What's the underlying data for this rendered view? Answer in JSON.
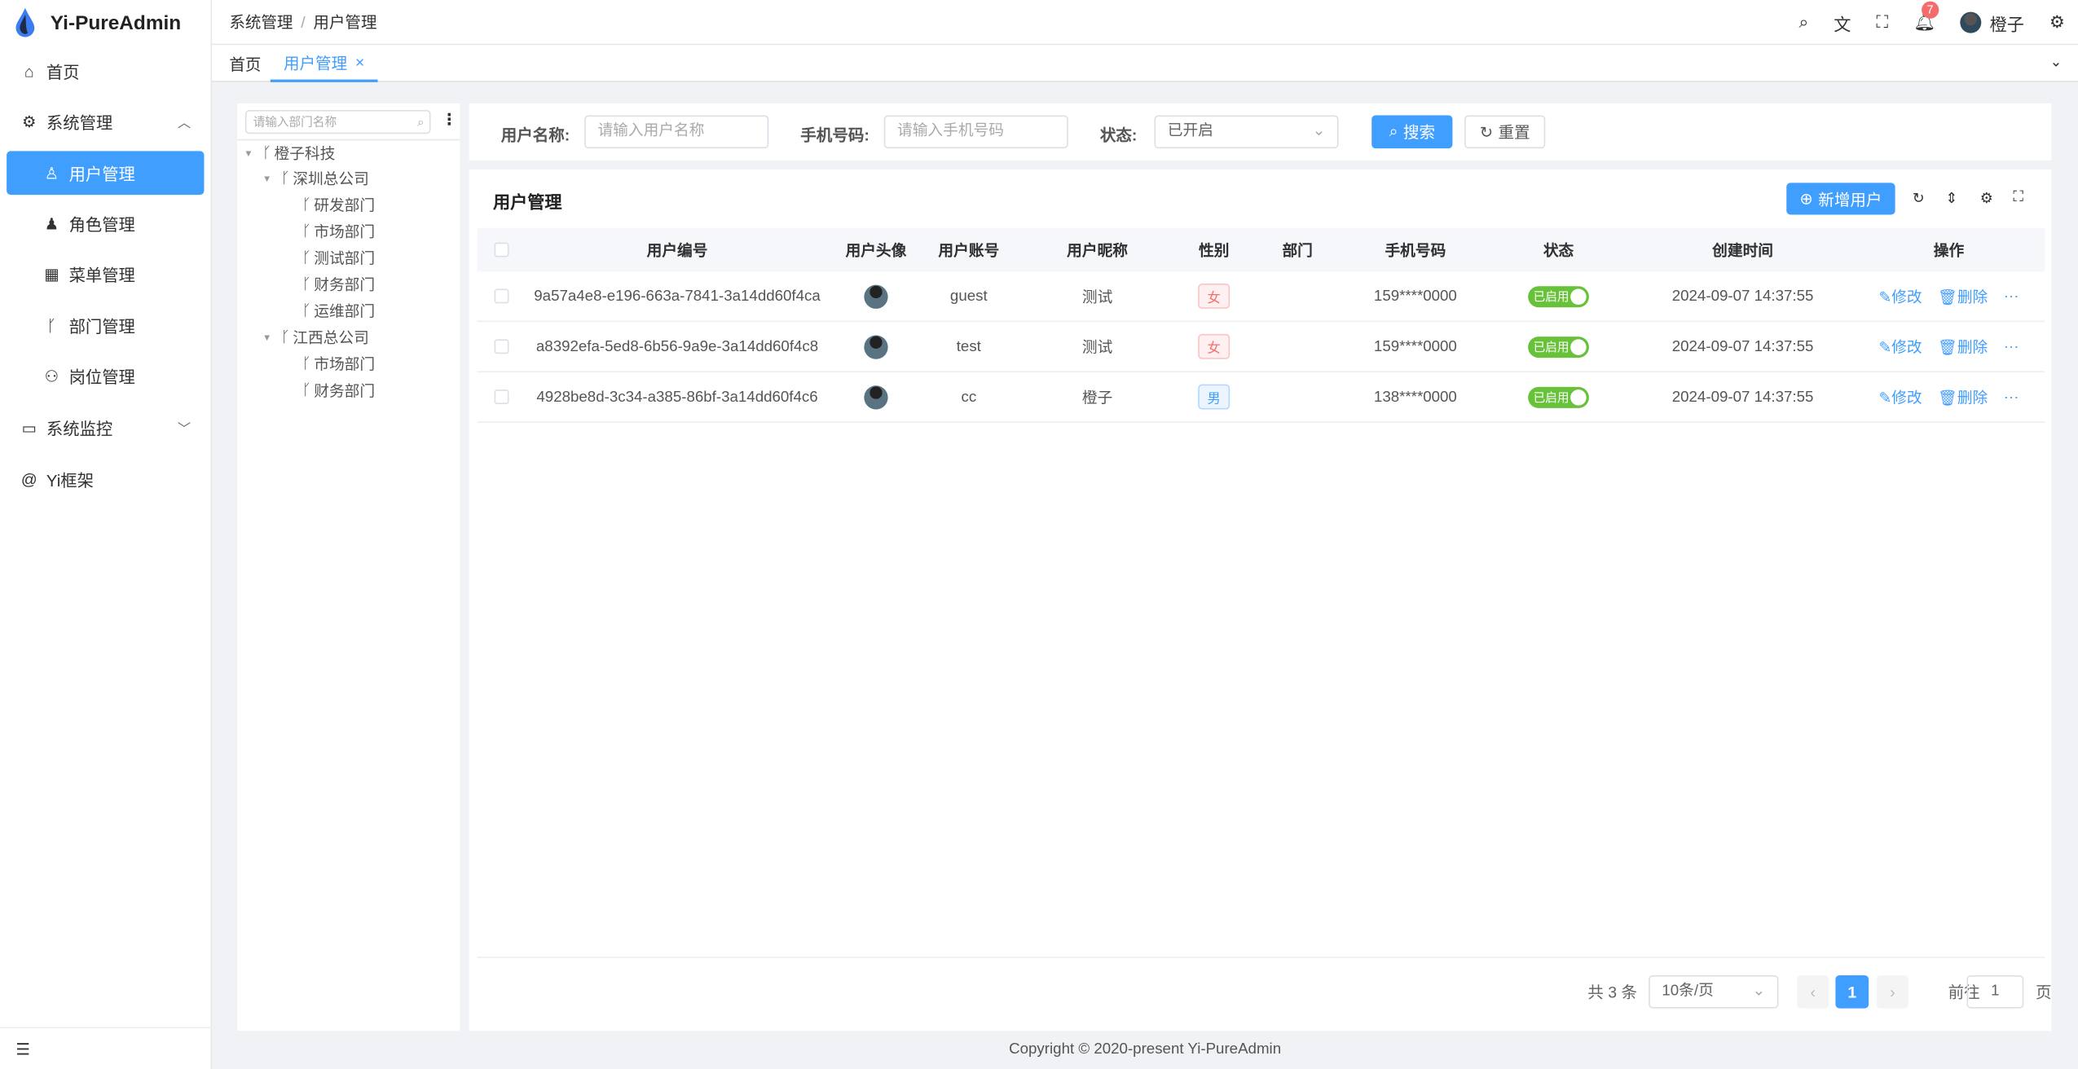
{
  "app": {
    "title": "Yi-PureAdmin",
    "accent": "#409eff"
  },
  "sidebar": {
    "items": [
      {
        "label": "首页",
        "icon": "home-icon"
      },
      {
        "label": "系统管理",
        "icon": "gear-icon"
      },
      {
        "label": "用户管理",
        "icon": "user-icon",
        "active": true
      },
      {
        "label": "角色管理",
        "icon": "role-icon"
      },
      {
        "label": "菜单管理",
        "icon": "grid-icon"
      },
      {
        "label": "部门管理",
        "icon": "branch-icon"
      },
      {
        "label": "岗位管理",
        "icon": "org-icon"
      },
      {
        "label": "系统监控",
        "icon": "monitor-icon"
      },
      {
        "label": "Yi框架",
        "icon": "at-icon"
      }
    ]
  },
  "header": {
    "breadcrumb": [
      "系统管理",
      "用户管理"
    ],
    "notification_count": "7",
    "username": "橙子"
  },
  "tabs": [
    {
      "label": "首页"
    },
    {
      "label": "用户管理",
      "active": true
    }
  ],
  "tree": {
    "placeholder": "请输入部门名称",
    "nodes": [
      "橙子科技",
      "深圳总公司",
      "研发部门",
      "市场部门",
      "测试部门",
      "财务部门",
      "运维部门",
      "江西总公司",
      "市场部门",
      "财务部门"
    ]
  },
  "search": {
    "name_label": "用户名称:",
    "name_placeholder": "请输入用户名称",
    "phone_label": "手机号码:",
    "phone_placeholder": "请输入手机号码",
    "status_label": "状态:",
    "status_value": "已开启",
    "search_btn": "搜索",
    "reset_btn": "重置"
  },
  "table": {
    "title": "用户管理",
    "add_btn": "新增用户",
    "columns": [
      "用户编号",
      "用户头像",
      "用户账号",
      "用户昵称",
      "性别",
      "部门",
      "手机号码",
      "状态",
      "创建时间",
      "操作"
    ],
    "rows": [
      {
        "id": "9a57a4e8-e196-663a-7841-3a14dd60f4ca",
        "account": "guest",
        "nick": "测试",
        "gender": "女",
        "dept": "",
        "phone": "159****0000",
        "status": "已启用",
        "created": "2024-09-07 14:37:55"
      },
      {
        "id": "a8392efa-5ed8-6b56-9a9e-3a14dd60f4c8",
        "account": "test",
        "nick": "测试",
        "gender": "女",
        "dept": "",
        "phone": "159****0000",
        "status": "已启用",
        "created": "2024-09-07 14:37:55"
      },
      {
        "id": "4928be8d-3c34-a385-86bf-3a14dd60f4c6",
        "account": "cc",
        "nick": "橙子",
        "gender": "男",
        "dept": "",
        "phone": "138****0000",
        "status": "已启用",
        "created": "2024-09-07 14:37:55"
      }
    ],
    "edit": "修改",
    "delete": "删除"
  },
  "pagination": {
    "total": "共 3 条",
    "page_size": "10条/页",
    "current": "1",
    "goto_label": "前往",
    "goto_value": "1",
    "page_suffix": "页"
  },
  "footer": "Copyright © 2020-present Yi-PureAdmin"
}
